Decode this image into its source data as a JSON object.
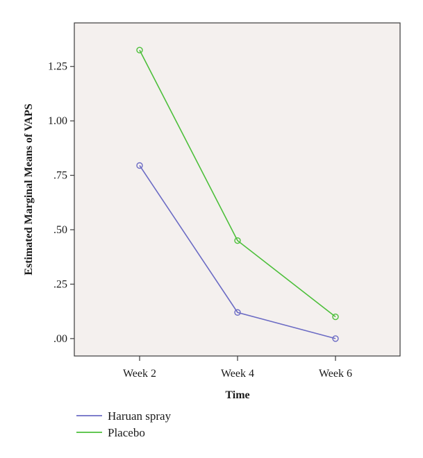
{
  "chart_data": {
    "type": "line",
    "categories": [
      "Week 2",
      "Week 4",
      "Week 6"
    ],
    "series": [
      {
        "name": "Haruan spray",
        "color": "#6b6bc4",
        "values": [
          0.795,
          0.12,
          0.0
        ]
      },
      {
        "name": "Placebo",
        "color": "#4cbf3a",
        "values": [
          1.325,
          0.45,
          0.1
        ]
      }
    ],
    "xlabel": "Time",
    "ylabel": "Estimated Marginal Means of VAPS",
    "ylim": [
      -0.08,
      1.45
    ],
    "yticks": [
      0,
      0.25,
      0.5,
      0.75,
      1.0,
      1.25
    ],
    "ytick_labels": [
      ".00",
      ".25",
      ".50",
      ".75",
      "1.00",
      "1.25"
    ],
    "grid": false,
    "legend_position": "bottom-left",
    "plot_background": "#f4f0ee",
    "marker": "open-circle"
  }
}
